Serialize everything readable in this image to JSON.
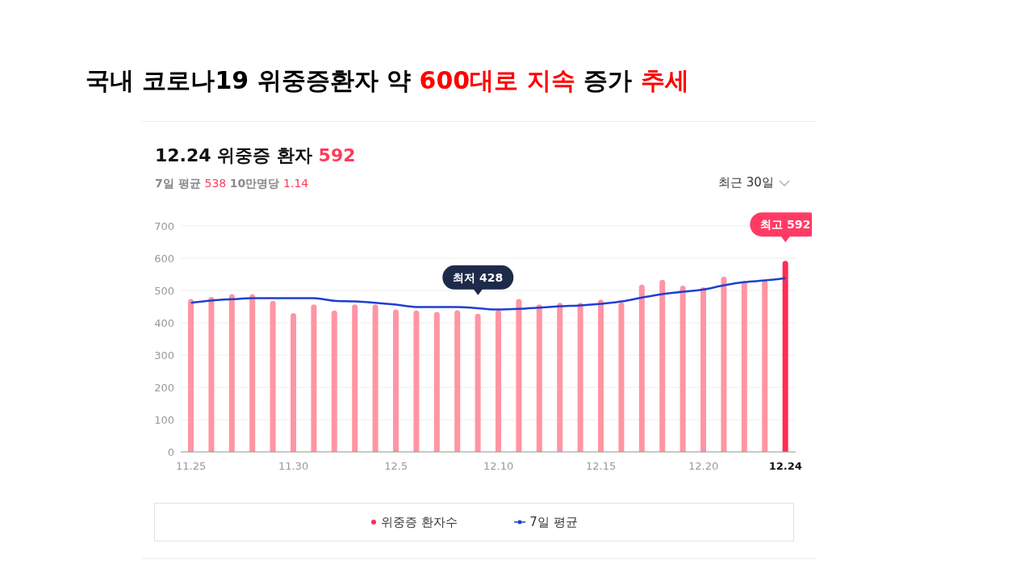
{
  "chart_data": {
    "type": "bar",
    "title": "국내 코로나19 위중증환자 약 600대로 지속 증가 추세",
    "subtitle": "12.24 위중증 환자 592",
    "annotations": [
      {
        "text": "최저 428",
        "y": 428
      },
      {
        "text": "최고 592",
        "x": "12.24",
        "y": 592
      },
      "7일 평균 538 10만명당 1.14",
      "최근 30일"
    ],
    "categories": [
      "11.25",
      null,
      null,
      null,
      null,
      "11.30",
      null,
      null,
      null,
      null,
      "12.5",
      null,
      null,
      null,
      null,
      "12.10",
      null,
      null,
      null,
      null,
      "12.15",
      null,
      null,
      null,
      null,
      "12.20",
      null,
      null,
      null,
      "12.24"
    ],
    "series": [
      {
        "name": "위중증 환자수",
        "color": "#ff95a3",
        "colors": [
          "#ff95a3",
          "#ff95a3",
          "#ff95a3",
          "#ff95a3",
          "#ff95a3",
          "#ff95a3",
          "#ff95a3",
          "#ff95a3",
          "#ff95a3",
          "#ff95a3",
          "#ff95a3",
          "#ff95a3",
          "#ff95a3",
          "#ff95a3",
          "#ff95a3",
          "#ff95a3",
          "#ff95a3",
          "#ff95a3",
          "#ff95a3",
          "#ff95a3",
          "#ff95a3",
          "#ff95a3",
          "#ff95a3",
          "#ff95a3",
          "#ff95a3",
          "#ff95a3",
          "#ff95a3",
          "#ff95a3",
          "#ff95a3",
          "#ff2d55"
        ],
        "values": [
          474,
          480,
          489,
          489,
          468,
          430,
          457,
          438,
          457,
          457,
          441,
          438,
          434,
          439,
          428,
          440,
          474,
          457,
          462,
          462,
          472,
          464,
          518,
          533,
          515,
          510,
          543,
          529,
          531,
          592
        ]
      },
      {
        "name": "7일 평균",
        "type": "line",
        "color": "#1f3fd0",
        "values": [
          462,
          469,
          473,
          476,
          476,
          476,
          476,
          468,
          466,
          462,
          456,
          449,
          449,
          449,
          445,
          441,
          443,
          447,
          451,
          454,
          459,
          466,
          478,
          489,
          496,
          503,
          516,
          526,
          531,
          538
        ]
      }
    ],
    "ylim": [
      0,
      700
    ],
    "yticks": [
      0,
      100,
      200,
      300,
      400,
      500,
      600,
      700
    ],
    "grid": "y",
    "legend": "bottom",
    "marker": "none",
    "line_style": "solid"
  }
}
